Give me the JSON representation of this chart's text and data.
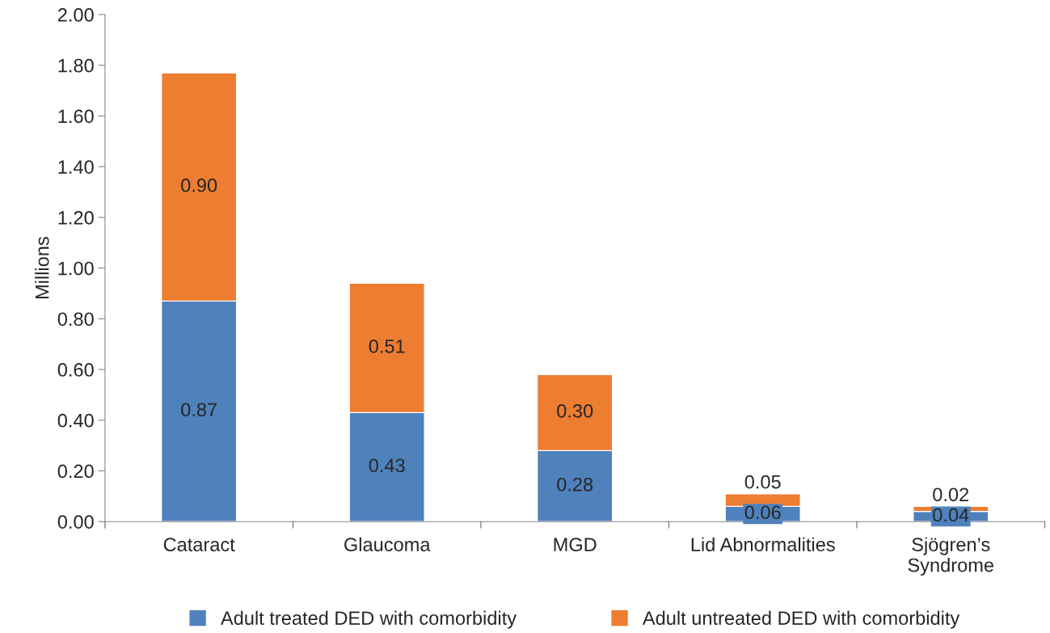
{
  "chart_data": {
    "type": "bar",
    "stacked": true,
    "ylabel": "Millions",
    "categories": [
      "Cataract",
      "Glaucoma",
      "MGD",
      "Lid Abnormalities",
      "Sjögren’s\nSyndrome"
    ],
    "series": [
      {
        "name": "Adult treated DED with comorbidity",
        "color": "#4f81bd",
        "values": [
          0.87,
          0.43,
          0.28,
          0.06,
          0.04
        ],
        "value_labels": [
          "0.87",
          "0.43",
          "0.28",
          "0.06",
          "0.04"
        ]
      },
      {
        "name": "Adult untreated DED with comorbidity",
        "color": "#ed7d31",
        "values": [
          0.9,
          0.51,
          0.3,
          0.05,
          0.02
        ],
        "value_labels": [
          "0.90",
          "0.51",
          "0.30",
          "0.05",
          "0.02"
        ]
      }
    ],
    "ylim": [
      0,
      2
    ],
    "yticks": [
      {
        "value": 0,
        "label": "0.00"
      },
      {
        "value": 0.2,
        "label": "0.20"
      },
      {
        "value": 0.4,
        "label": "0.40"
      },
      {
        "value": 0.6,
        "label": "0.60"
      },
      {
        "value": 0.8,
        "label": "0.80"
      },
      {
        "value": 1.0,
        "label": "1.00"
      },
      {
        "value": 1.2,
        "label": "1.20"
      },
      {
        "value": 1.4,
        "label": "1.40"
      },
      {
        "value": 1.6,
        "label": "1.60"
      },
      {
        "value": 1.8,
        "label": "1.80"
      },
      {
        "value": 2.0,
        "label": "2.00"
      }
    ],
    "grid": false,
    "legend": "bottom"
  }
}
